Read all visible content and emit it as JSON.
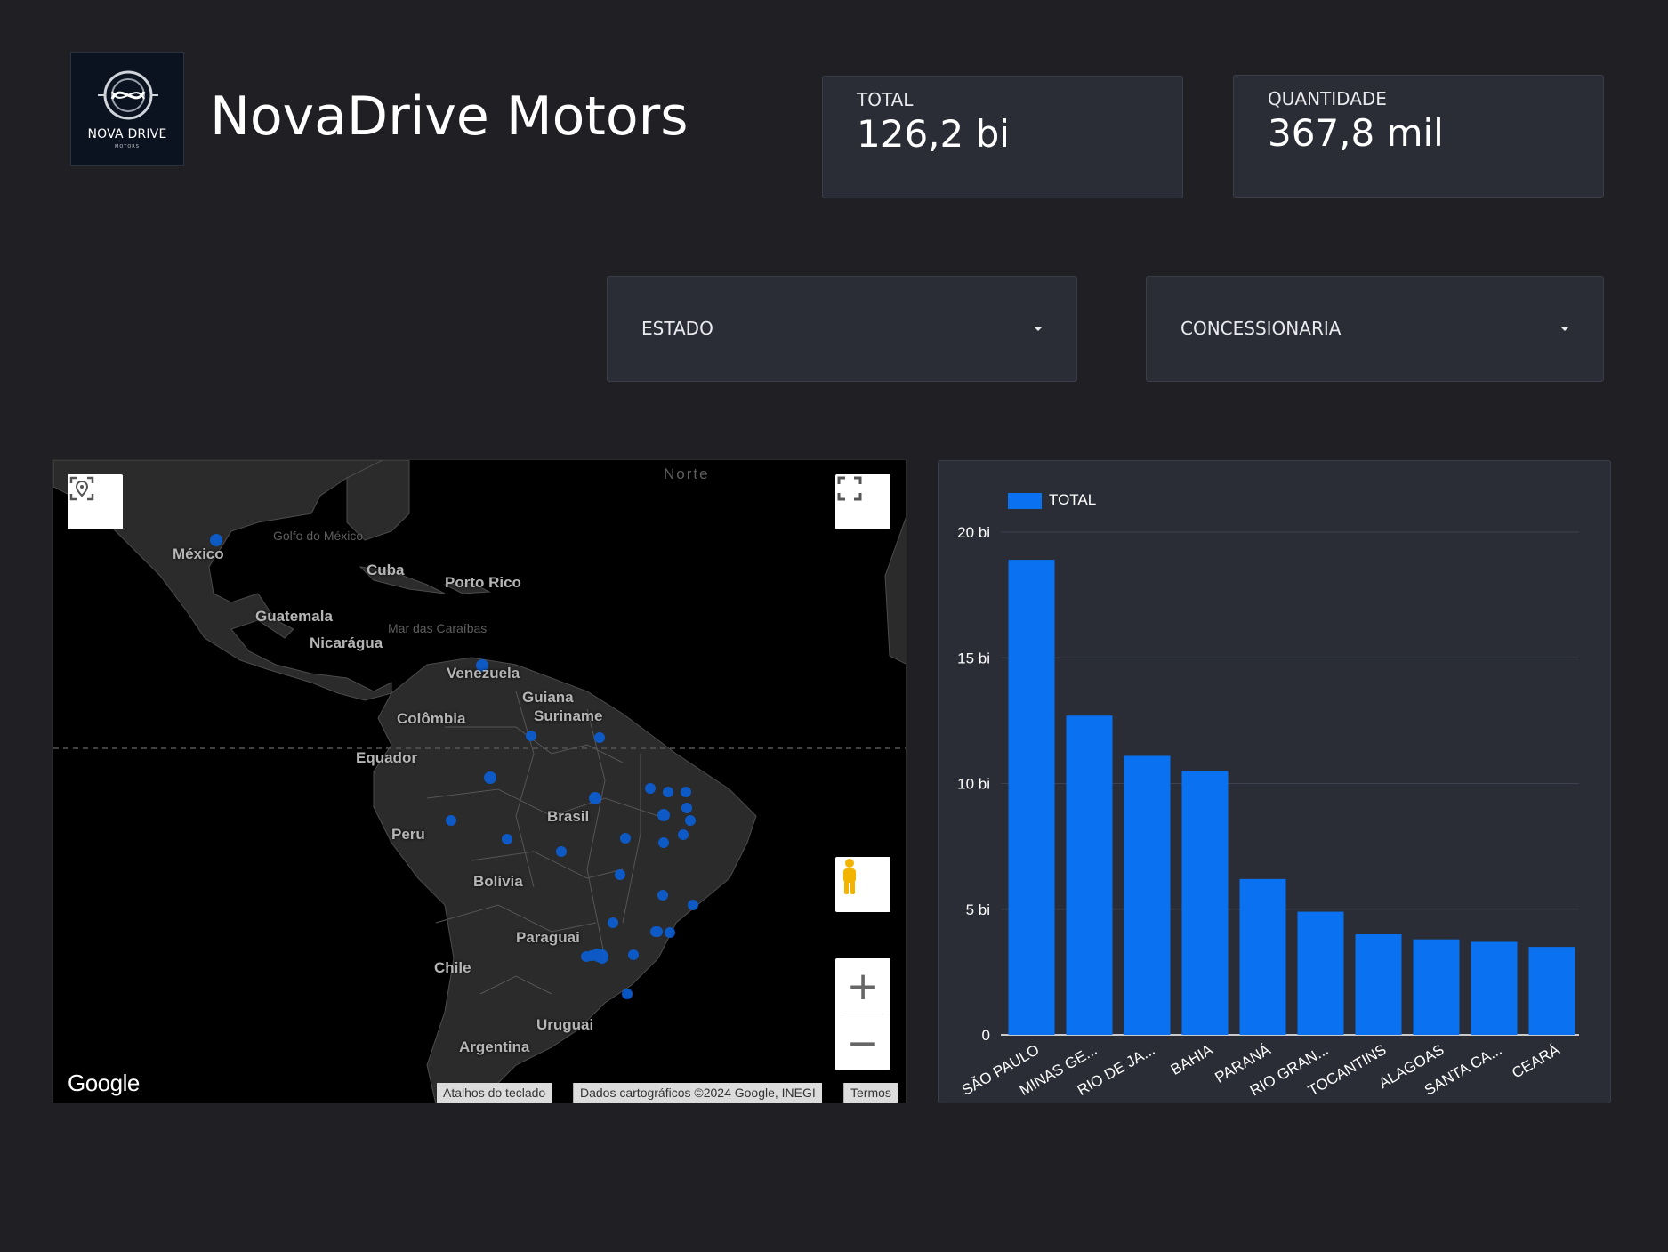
{
  "header": {
    "title": "NovaDrive Motors",
    "logo_text": "NOVA DRIVE",
    "logo_subtext": "MOTORS"
  },
  "kpis": [
    {
      "label": "TOTAL",
      "value": "126,2 bi"
    },
    {
      "label": "QUANTIDADE",
      "value": "367,8 mil"
    }
  ],
  "filters": [
    {
      "label": "ESTADO"
    },
    {
      "label": "CONCESSIONARIA"
    }
  ],
  "map": {
    "labels": {
      "mexico": "México",
      "cuba": "Cuba",
      "porto_rico": "Porto Rico",
      "guatemala": "Guatemala",
      "nicaragua": "Nicarágua",
      "venezuela": "Venezuela",
      "guiana": "Guiana",
      "suriname": "Suriname",
      "colombia": "Colômbia",
      "equador": "Equador",
      "peru": "Peru",
      "brasil": "Brasil",
      "bolivia": "Bolívia",
      "paraguai": "Paraguai",
      "chile": "Chile",
      "uruguai": "Uruguai",
      "argentina": "Argentina",
      "golfo": "Golfo do México",
      "caribe": "Mar das Caraíbas",
      "norte": "Norte"
    },
    "google_logo": "Google",
    "attribution": [
      "Atalhos do teclado",
      "Dados cartográficos ©2024 Google, INEGI",
      "Termos"
    ],
    "marker_color": "#0a5fd6"
  },
  "chart_data": {
    "type": "bar",
    "categories": [
      "SÃO PAULO",
      "MINAS GE...",
      "RIO DE JA...",
      "BAHIA",
      "PARANÁ",
      "RIO GRAN...",
      "TOCANTINS",
      "ALAGOAS",
      "SANTA CA...",
      "CEARÁ"
    ],
    "series": [
      {
        "name": "TOTAL",
        "values": [
          18.9,
          12.7,
          11.1,
          10.5,
          6.2,
          4.9,
          4.0,
          3.8,
          3.7,
          3.5
        ],
        "color": "#0a72f0"
      }
    ],
    "ylim": [
      0,
      20
    ],
    "yticks": [
      0,
      5,
      10,
      15,
      20
    ],
    "ytick_labels": [
      "0",
      "5 bi",
      "10 bi",
      "15 bi",
      "20 bi"
    ],
    "legend": "top-left",
    "grid": true
  },
  "colors": {
    "background": "#1f1f24",
    "card": "#2b2d36",
    "bar": "#0a72f0",
    "gridline": "#3e4150"
  }
}
